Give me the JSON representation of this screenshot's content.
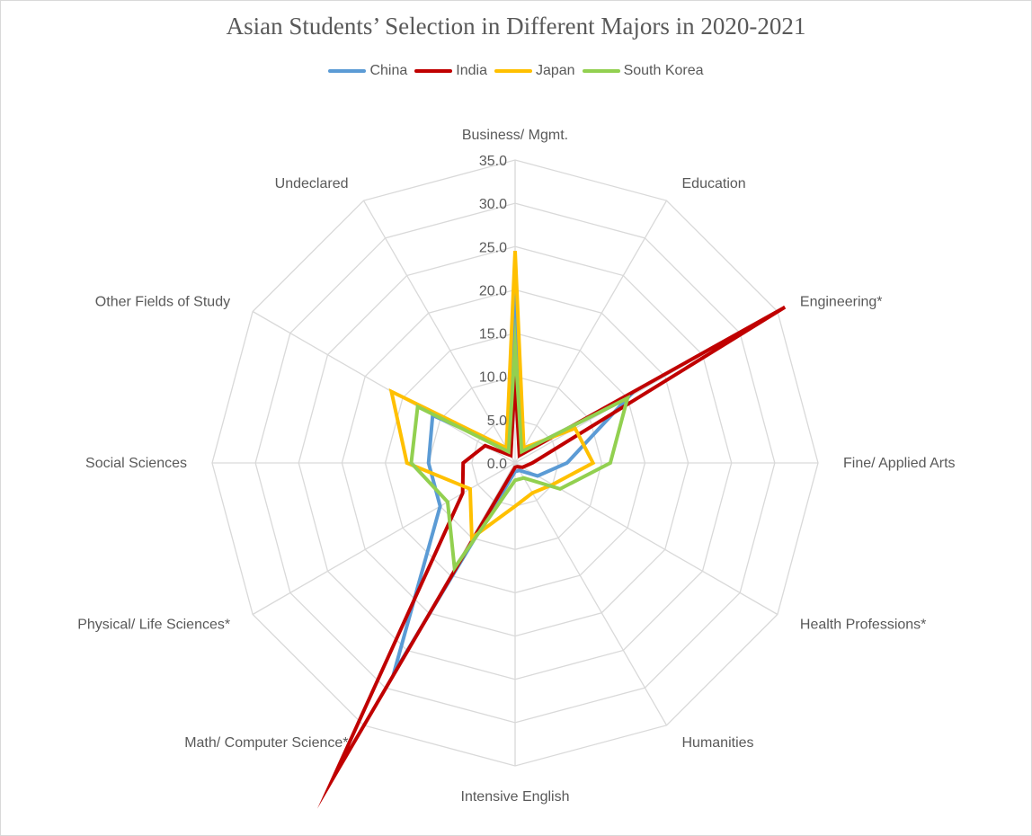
{
  "chart_data": {
    "type": "radar",
    "title": "Asian Students’ Selection in Different Majors in 2020-2021",
    "categories": [
      "Business/ Mgmt.",
      "Education",
      "Engineering*",
      "Fine/ Applied Arts",
      "Health Professions*",
      "Humanities",
      "Intensive English",
      "Math/ Computer Science*",
      "Physical/ Life Sciences*",
      "Social Sciences",
      "Other Fields of Study",
      "Undeclared"
    ],
    "ticks": [
      "35.0",
      "30.0",
      "25.0",
      "20.0",
      "15.0",
      "10.0",
      "5.0",
      "0.0"
    ],
    "rlim": [
      0,
      35
    ],
    "legend_position": "top",
    "series": [
      {
        "name": "China",
        "color": "#5B9BD5",
        "values": [
          17.0,
          1.5,
          15.0,
          6.0,
          3.0,
          1.0,
          1.0,
          28.0,
          10.0,
          10.0,
          11.0,
          2.0
        ]
      },
      {
        "name": "India",
        "color": "#C00000",
        "values": [
          10.0,
          1.0,
          36.0,
          2.0,
          1.0,
          0.5,
          0.5,
          42.0,
          7.0,
          6.0,
          4.0,
          1.0
        ]
      },
      {
        "name": "Japan",
        "color": "#FFC000",
        "values": [
          24.5,
          2.0,
          8.0,
          9.0,
          5.0,
          4.0,
          5.0,
          10.0,
          6.0,
          12.5,
          16.5,
          2.0
        ]
      },
      {
        "name": "South Korea",
        "color": "#92D050",
        "values": [
          13.5,
          1.5,
          15.0,
          11.0,
          6.0,
          2.0,
          2.0,
          14.0,
          9.0,
          12.0,
          13.0,
          1.5
        ]
      }
    ]
  }
}
